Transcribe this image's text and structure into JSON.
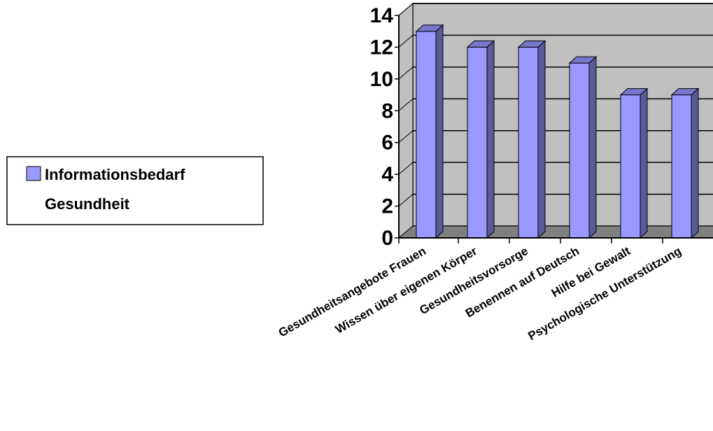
{
  "chart_data": {
    "type": "bar",
    "categories": [
      "Gesundheitsangebote Frauen",
      "Wissen über eigenen Körper",
      "Gesundheitsvorsorge",
      "Benennen auf Deutsch",
      "Hilfe bei Gewalt",
      "Psychologische Unterstützung"
    ],
    "series": [
      {
        "name": "Informationsbedarf Gesundheit",
        "values": [
          13,
          12,
          12,
          11,
          9,
          9
        ]
      }
    ],
    "ylim": [
      0,
      14
    ],
    "yticks": [
      0,
      2,
      4,
      6,
      8,
      10,
      12,
      14
    ],
    "grid": true,
    "legend_position": "left",
    "legend_lines": [
      "Informationsbedarf",
      "Gesundheit"
    ],
    "colors": {
      "bar_front": "#9999ff",
      "bar_side": "#5a5a99",
      "bar_top": "#7777cc",
      "wall": "#c0c0c0",
      "floor": "#808080"
    }
  }
}
